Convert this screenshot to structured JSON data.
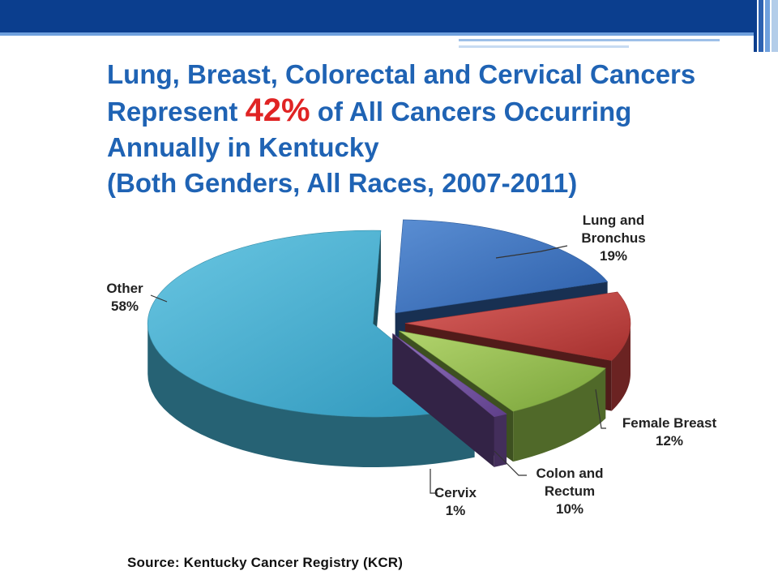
{
  "header": {
    "title_pre": "Lung, Breast, Colorectal and Cervical Cancers Represent",
    "title_highlight": "42%",
    "title_post": "of All Cancers Occurring Annually in Kentucky",
    "title_sub": "(Both Genders, All Races, 2007-2011)"
  },
  "source": "Source: Kentucky Cancer Registry (KCR)",
  "colors": {
    "top_bar": "#0b3e8e",
    "title": "#1f63b4",
    "highlight": "#e02424"
  },
  "chart_data": {
    "type": "pie",
    "style": "3d-exploded",
    "slices": [
      {
        "name_lines": [
          "Lung and",
          "Bronchus"
        ],
        "pct_label": "19%",
        "value": 19,
        "color": "#3a73c3"
      },
      {
        "name_lines": [
          "Female Breast"
        ],
        "pct_label": "12%",
        "value": 12,
        "color": "#c2403e"
      },
      {
        "name_lines": [
          "Colon and",
          "Rectum"
        ],
        "pct_label": "10%",
        "value": 10,
        "color": "#92bf4b"
      },
      {
        "name_lines": [
          "Cervix"
        ],
        "pct_label": "1%",
        "value": 1,
        "color": "#7a54a6"
      },
      {
        "name_lines": [
          "Other"
        ],
        "pct_label": "58%",
        "value": 58,
        "color": "#45b2d3"
      }
    ]
  }
}
